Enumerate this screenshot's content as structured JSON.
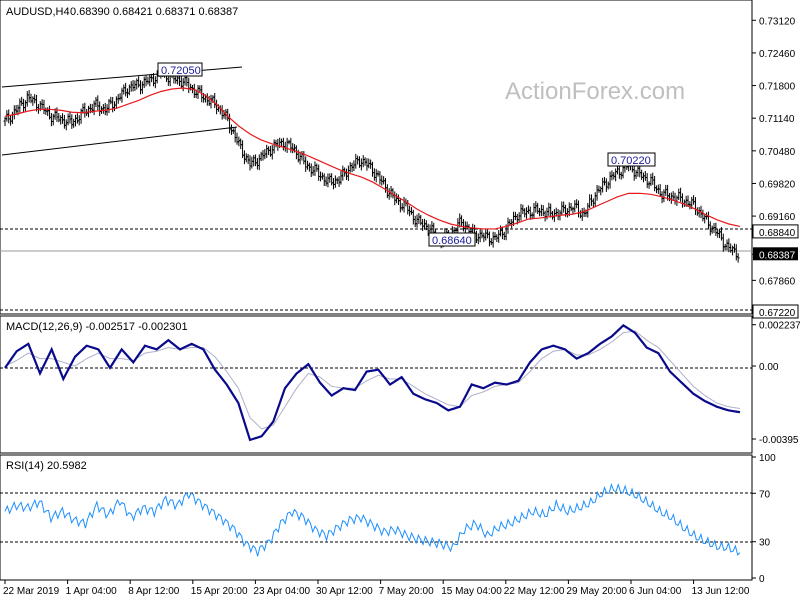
{
  "header": {
    "symbol": "AUDUSD,H4",
    "ohlc": "0.68390 0.68421 0.68371 0.68387",
    "watermark": "ActionForex.com"
  },
  "colors": {
    "bar": "#000000",
    "ma": "#e8191e",
    "macd": "#0a0a8c",
    "signal": "#b0b0c8",
    "rsi": "#1e90ff",
    "grid": "#000000",
    "background": "#ffffff"
  },
  "price_labels": {
    "high_1": "0.72050",
    "high_2": "0.70220",
    "low_1": "0.68640",
    "support_line": "0.68840",
    "lower_line": "0.67220",
    "current": "0.68387"
  },
  "x_axis_labels": [
    "22 Mar 2019",
    "1 Apr 04:00",
    "8 Apr 12:00",
    "15 Apr 20:00",
    "23 Apr 04:00",
    "30 Apr 12:00",
    "7 May 20:00",
    "15 May 04:00",
    "22 May 12:00",
    "29 May 20:00",
    "6 Jun 04:00",
    "13 Jun 12:00"
  ],
  "chart_data": [
    {
      "type": "ohlc",
      "title": "AUDUSD,H4",
      "ylim": [
        0.6722,
        0.7349
      ],
      "y_ticks": [
        "0.73120",
        "0.72460",
        "0.71800",
        "0.71140",
        "0.70480",
        "0.69820",
        "0.69160",
        "0.68840",
        "0.68387",
        "0.67860",
        "0.67220"
      ],
      "price_points": [
        0.7108,
        0.713,
        0.7155,
        0.7142,
        0.712,
        0.7112,
        0.7105,
        0.7125,
        0.714,
        0.7132,
        0.715,
        0.7175,
        0.7182,
        0.719,
        0.7205,
        0.7195,
        0.7188,
        0.717,
        0.7155,
        0.714,
        0.711,
        0.706,
        0.702,
        0.7035,
        0.7055,
        0.7065,
        0.705,
        0.702,
        0.7005,
        0.6985,
        0.699,
        0.7015,
        0.703,
        0.701,
        0.698,
        0.695,
        0.6935,
        0.6905,
        0.6895,
        0.6864,
        0.688,
        0.6905,
        0.688,
        0.6875,
        0.687,
        0.689,
        0.692,
        0.6925,
        0.6928,
        0.692,
        0.6925,
        0.6935,
        0.692,
        0.696,
        0.6985,
        0.7005,
        0.7018,
        0.7,
        0.6985,
        0.696,
        0.6955,
        0.6948,
        0.6935,
        0.6905,
        0.688,
        0.685,
        0.6839
      ],
      "ma_points": [
        0.7118,
        0.7122,
        0.7128,
        0.7132,
        0.7132,
        0.713,
        0.7126,
        0.7125,
        0.7128,
        0.713,
        0.7134,
        0.7142,
        0.715,
        0.716,
        0.7168,
        0.7173,
        0.7175,
        0.7172,
        0.716,
        0.7142,
        0.7118,
        0.7098,
        0.7082,
        0.707,
        0.7062,
        0.7055,
        0.7048,
        0.704,
        0.703,
        0.702,
        0.701,
        0.7002,
        0.6995,
        0.6985,
        0.6972,
        0.6958,
        0.6945,
        0.693,
        0.6918,
        0.6908,
        0.69,
        0.6895,
        0.6892,
        0.689,
        0.689,
        0.6895,
        0.6902,
        0.691,
        0.6912,
        0.6915,
        0.6918,
        0.692,
        0.6925,
        0.6935,
        0.6945,
        0.6955,
        0.6962,
        0.6962,
        0.696,
        0.6955,
        0.6948,
        0.694,
        0.693,
        0.6918,
        0.6908,
        0.69,
        0.6895
      ]
    },
    {
      "type": "line",
      "title": "MACD(12,26,9) -0.002517 -0.002301",
      "ylim": [
        -0.0046,
        0.0026
      ],
      "y_ticks": [
        "0.002237",
        "0.00",
        "-0.00395"
      ],
      "series": [
        {
          "values": [
            -0.0001,
            0.0008,
            0.0012,
            -0.0004,
            0.0009,
            -0.0007,
            0.0005,
            0.0011,
            0.0009,
            -0.0001,
            0.0009,
            0.0002,
            0.0011,
            0.0009,
            0.0014,
            0.0009,
            0.0012,
            0.0009,
            -0.0002,
            -0.001,
            -0.002,
            -0.004,
            -0.0038,
            -0.003,
            -0.0012,
            -0.0004,
            0.0001,
            -0.0009,
            -0.0016,
            -0.0012,
            -0.0013,
            -0.0003,
            -0.0002,
            -0.001,
            -0.0006,
            -0.0015,
            -0.0018,
            -0.002,
            -0.0024,
            -0.0022,
            -0.001,
            -0.0012,
            -0.0009,
            -0.001,
            -0.0008,
            0.0002,
            0.0009,
            0.0011,
            0.0009,
            0.0004,
            0.0007,
            0.0012,
            0.0016,
            0.0022,
            0.0018,
            0.001,
            0.0007,
            -0.0003,
            -0.0009,
            -0.0015,
            -0.0019,
            -0.0022,
            -0.0024,
            -0.0025
          ]
        },
        {
          "values": [
            0.0,
            0.0003,
            0.0007,
            0.0004,
            0.0004,
            0.0002,
            0.0,
            0.0004,
            0.0007,
            0.0004,
            0.0004,
            0.0003,
            0.0007,
            0.0008,
            0.001,
            0.0009,
            0.001,
            0.001,
            0.0005,
            -0.0003,
            -0.0012,
            -0.0028,
            -0.0034,
            -0.0032,
            -0.0022,
            -0.0012,
            -0.0004,
            -0.0006,
            -0.0011,
            -0.0012,
            -0.0012,
            -0.0008,
            -0.0005,
            -0.0007,
            -0.0007,
            -0.0011,
            -0.0015,
            -0.0018,
            -0.0021,
            -0.0022,
            -0.0016,
            -0.0014,
            -0.0011,
            -0.001,
            -0.0009,
            -0.0003,
            0.0004,
            0.0008,
            0.0009,
            0.0006,
            0.0006,
            0.0009,
            0.0013,
            0.0018,
            0.0019,
            0.0014,
            0.001,
            0.0003,
            -0.0004,
            -0.0011,
            -0.0016,
            -0.002,
            -0.0022,
            -0.0023
          ]
        }
      ]
    },
    {
      "type": "line",
      "title": "RSI(14) 20.5982",
      "ylim": [
        0,
        100
      ],
      "y_ticks": [
        "100",
        "70",
        "30",
        "0"
      ],
      "levels": [
        70,
        30
      ],
      "series": [
        {
          "values": [
            55,
            60,
            58,
            63,
            50,
            55,
            48,
            45,
            60,
            52,
            64,
            50,
            58,
            55,
            65,
            60,
            70,
            62,
            55,
            48,
            40,
            28,
            22,
            30,
            45,
            55,
            50,
            40,
            35,
            42,
            48,
            50,
            44,
            38,
            40,
            35,
            32,
            30,
            28,
            25,
            40,
            45,
            35,
            42,
            45,
            50,
            55,
            52,
            60,
            55,
            58,
            62,
            70,
            74,
            72,
            68,
            62,
            55,
            50,
            42,
            35,
            30,
            26,
            25,
            21
          ]
        }
      ]
    }
  ]
}
